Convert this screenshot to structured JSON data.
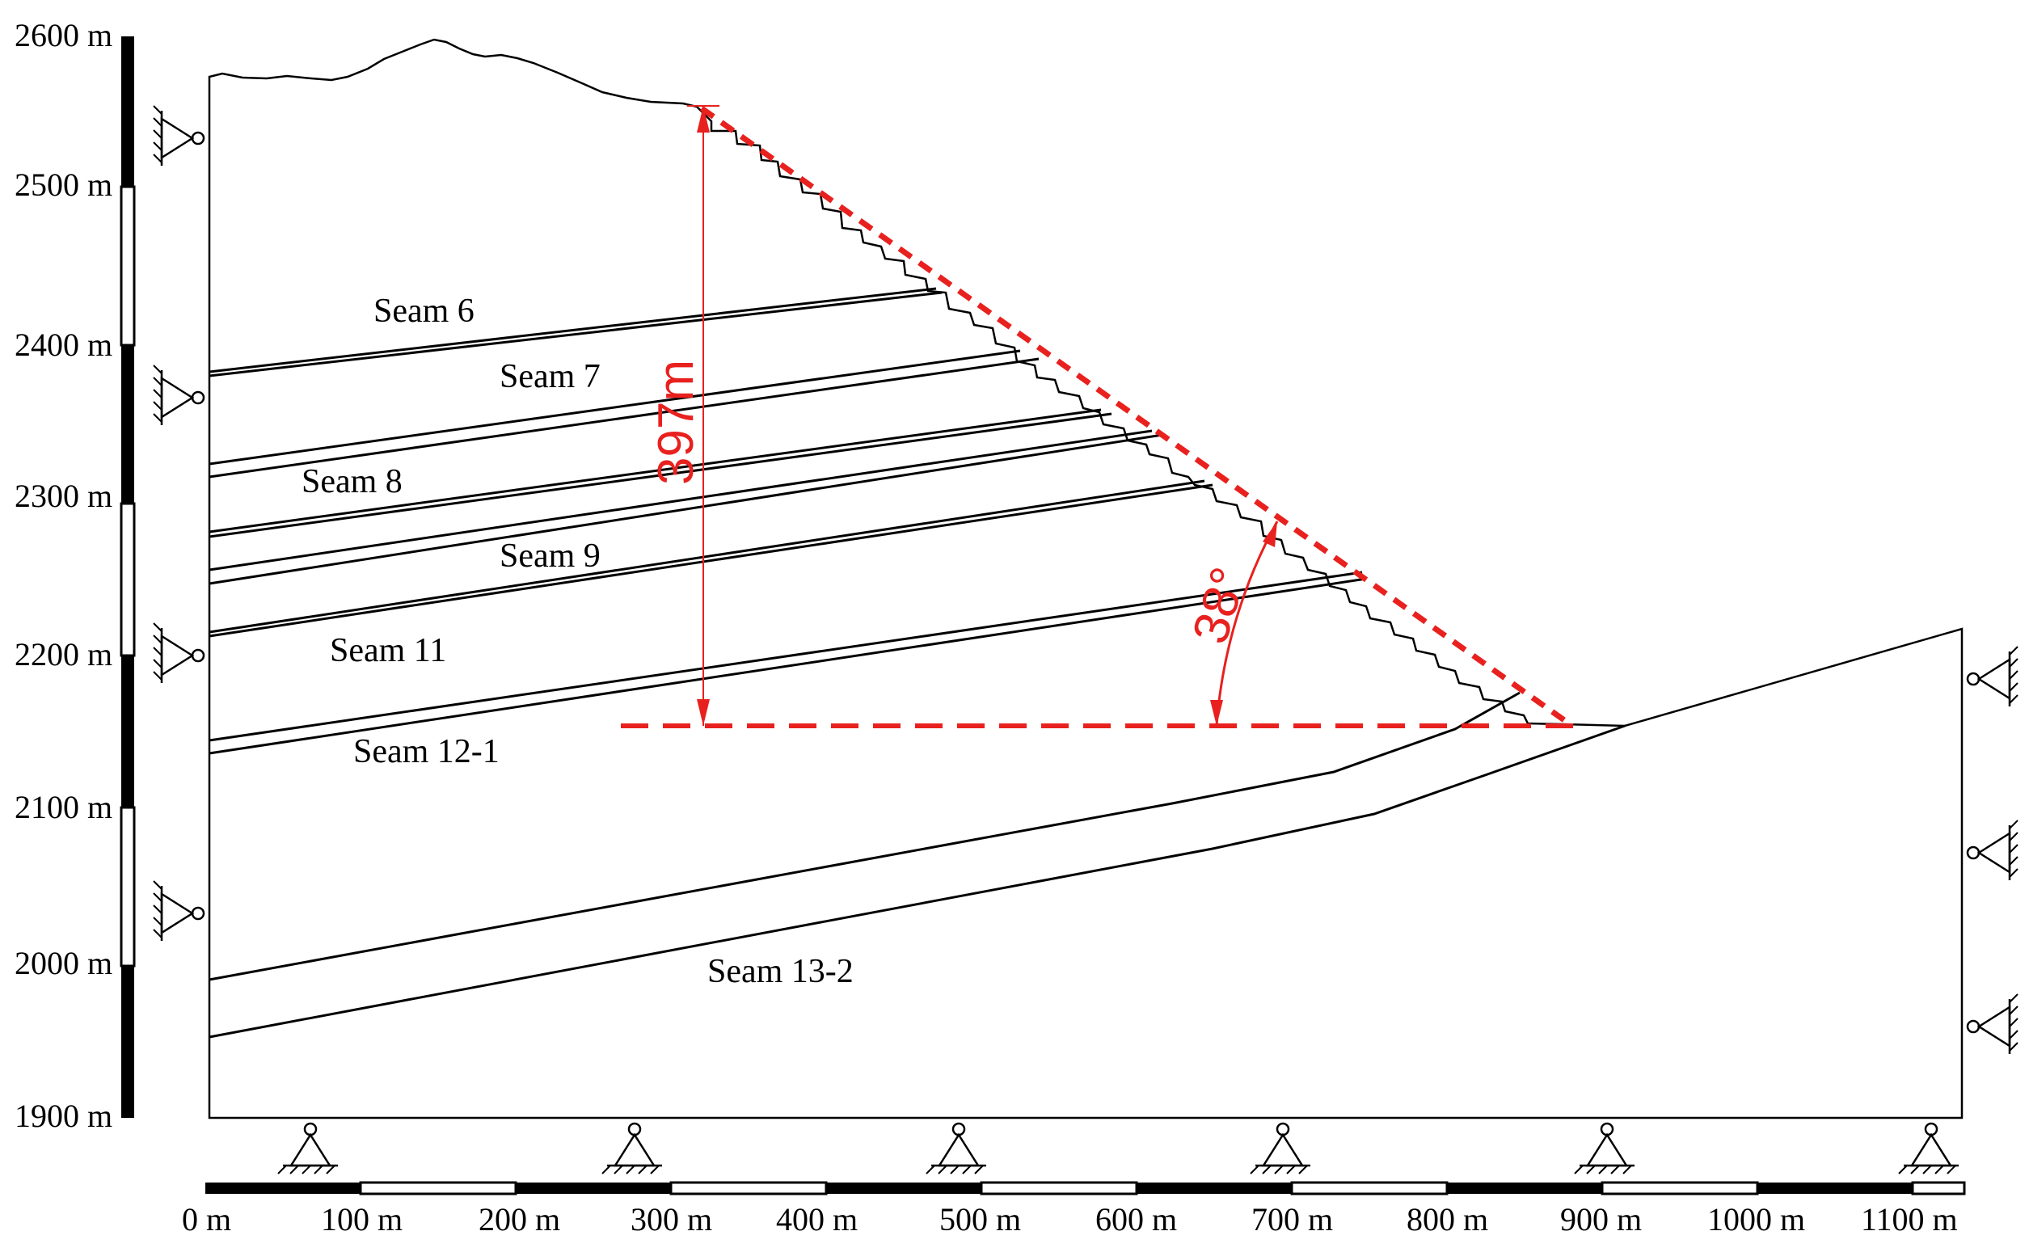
{
  "vertical_scale": {
    "ticks": [
      "2600 m",
      "2500 m",
      "2400 m",
      "2300 m",
      "2200 m",
      "2100 m",
      "2000 m",
      "1900 m"
    ]
  },
  "horizontal_scale": {
    "ticks": [
      "0 m",
      "100 m",
      "200 m",
      "300 m",
      "400 m",
      "500 m",
      "600 m",
      "700 m",
      "800 m",
      "900 m",
      "1000 m",
      "1100 m"
    ]
  },
  "seams": [
    {
      "id": "seam-6",
      "label": "Seam 6"
    },
    {
      "id": "seam-7",
      "label": "Seam 7"
    },
    {
      "id": "seam-8",
      "label": "Seam 8"
    },
    {
      "id": "seam-9",
      "label": "Seam 9"
    },
    {
      "id": "seam-11",
      "label": "Seam 11"
    },
    {
      "id": "seam-12-1",
      "label": "Seam 12-1"
    },
    {
      "id": "seam-13-2",
      "label": "Seam 13-2"
    }
  ],
  "annotations": {
    "height": "397m",
    "angle": "38°"
  },
  "colors": {
    "annotation": "#e8211f",
    "lines": "#000000"
  }
}
